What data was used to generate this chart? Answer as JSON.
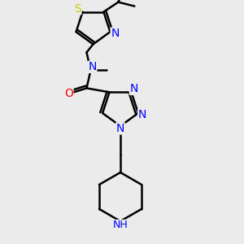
{
  "bg_color": "#ebebeb",
  "atom_colors": {
    "C": "#000000",
    "N": "#0000ff",
    "O": "#ff0000",
    "S": "#cccc00",
    "H": "#000000"
  },
  "bond_color": "#000000",
  "bond_width": 1.8,
  "font_size": 10,
  "figsize": [
    3.0,
    3.0
  ],
  "dpi": 100
}
